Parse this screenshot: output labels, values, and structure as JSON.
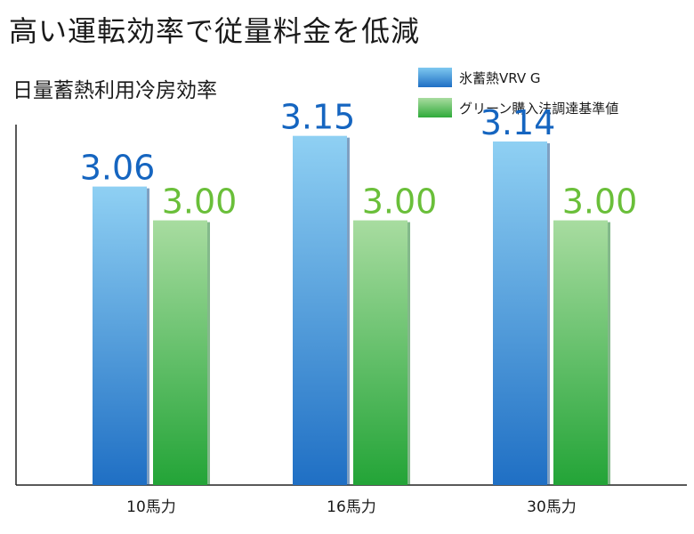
{
  "title": "高い運転効率で従量料金を低減",
  "subtitle": "日量蓄熱利用冷房効率",
  "colors": {
    "blue": "#1f6fc4",
    "green": "#3cae3f",
    "blue_label": "#1565c0",
    "green_label": "#6abf3a"
  },
  "chart_data": {
    "type": "bar",
    "categories": [
      "10馬力",
      "16馬力",
      "30馬力"
    ],
    "series": [
      {
        "name": "氷蓄熱VRV G",
        "values": [
          3.06,
          3.15,
          3.14
        ],
        "labels": [
          "3.06",
          "3.15",
          "3.14"
        ]
      },
      {
        "name": "グリーン購入法調達基準値",
        "values": [
          3.0,
          3.0,
          3.0
        ],
        "labels": [
          "3.00",
          "3.00",
          "3.00"
        ]
      }
    ],
    "title": "高い運転効率で従量料金を低減",
    "subtitle": "日量蓄熱利用冷房効率",
    "xlabel": "",
    "ylabel": "",
    "ylim": [
      2.53,
      3.17
    ],
    "grid": false,
    "legend": "top-right"
  }
}
